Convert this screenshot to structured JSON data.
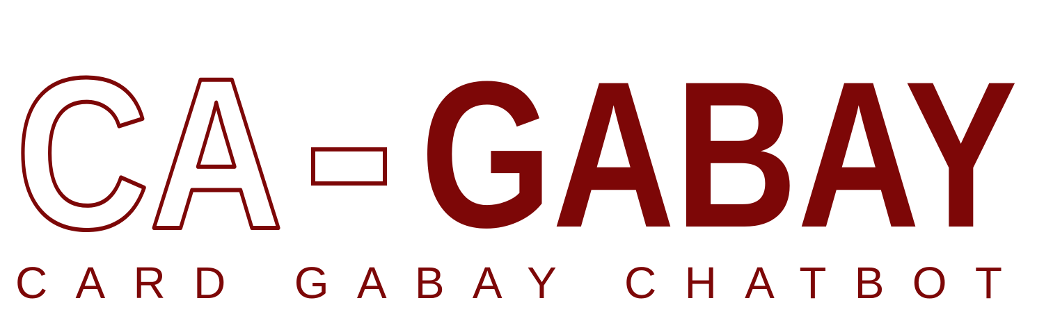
{
  "logo": {
    "left_word": "CA",
    "separator": "-",
    "right_word": "GABAY",
    "tagline": "CARD GABAY CHATBOT",
    "color": "#7d0707",
    "background": "#ffffff"
  }
}
